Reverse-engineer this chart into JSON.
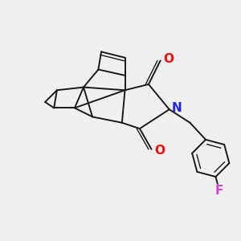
{
  "background_color": "#f0f0f0",
  "bond_color": "#1a1a1a",
  "N_color": "#2020ff",
  "O_color": "#ff0000",
  "F_color": "#cc44cc",
  "line_width": 1.4,
  "figsize": [
    3.0,
    3.0
  ],
  "dpi": 100,
  "xlim": [
    -0.85,
    0.75
  ],
  "ylim": [
    -0.7,
    0.65
  ]
}
